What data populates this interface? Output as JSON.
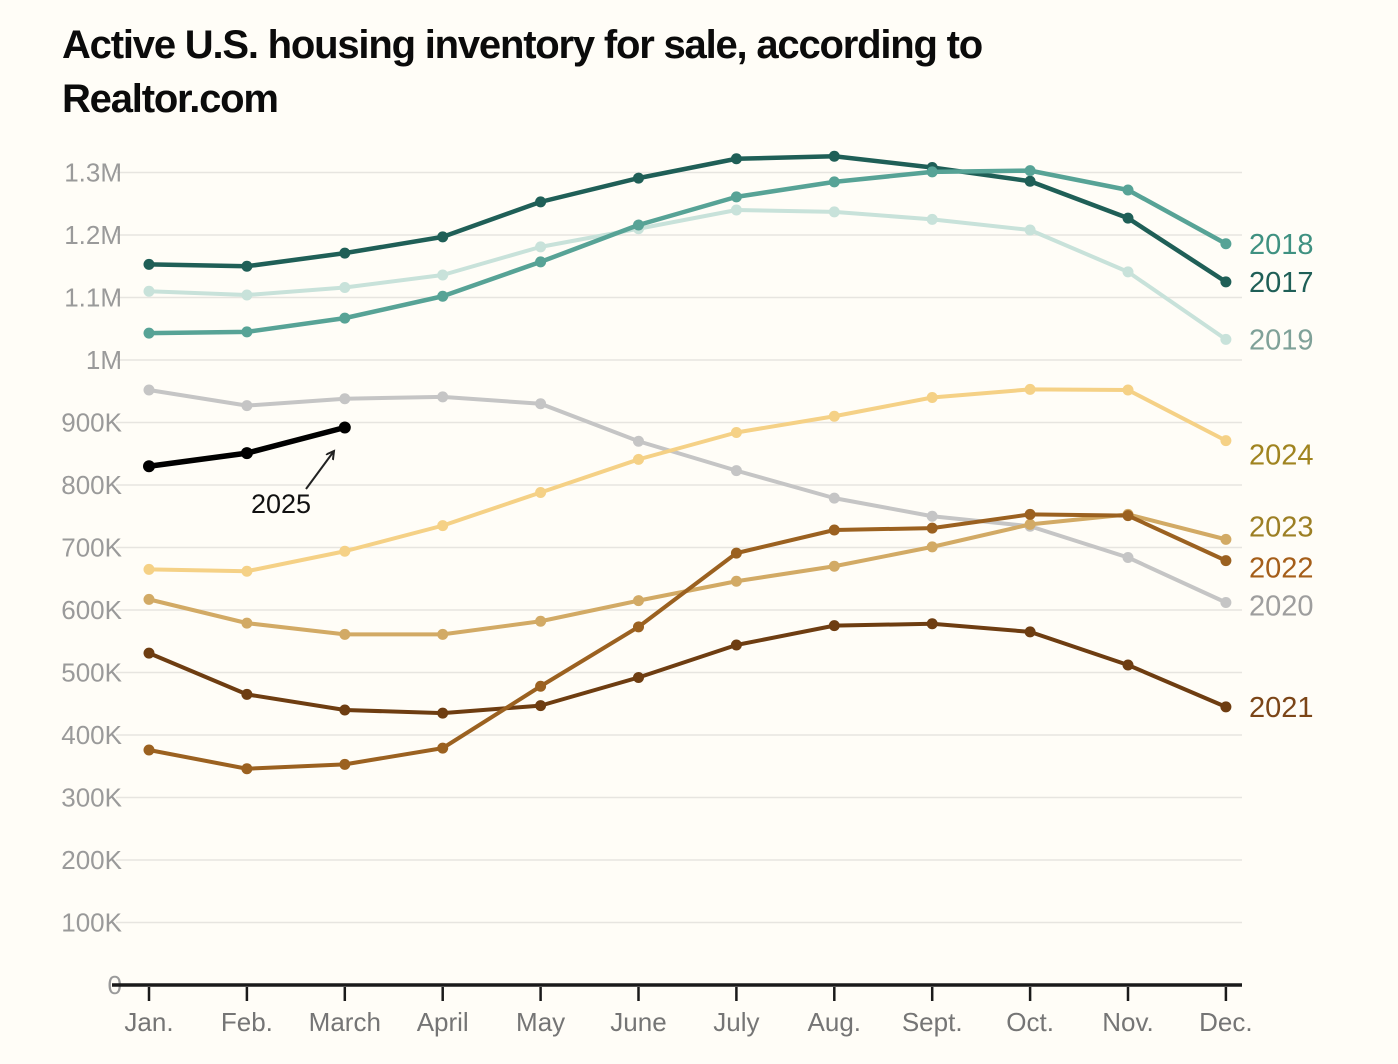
{
  "page": {
    "background": "#fffdf7"
  },
  "title": {
    "line1": "Active U.S. housing inventory for sale, according to",
    "line2": "Realtor.com"
  },
  "chart_data": {
    "type": "line",
    "x_categories": [
      "Jan.",
      "Feb.",
      "March",
      "April",
      "May",
      "June",
      "July",
      "Aug.",
      "Sept.",
      "Oct.",
      "Nov.",
      "Dec."
    ],
    "y_axis": {
      "unit": "housing units (K = thousands, M = millions)",
      "range_thousands": [
        0,
        1300
      ],
      "grid": true,
      "ticks": [
        {
          "value": 0,
          "label": "0"
        },
        {
          "value": 100,
          "label": "100K"
        },
        {
          "value": 200,
          "label": "200K"
        },
        {
          "value": 300,
          "label": "300K"
        },
        {
          "value": 400,
          "label": "400K"
        },
        {
          "value": 500,
          "label": "500K"
        },
        {
          "value": 600,
          "label": "600K"
        },
        {
          "value": 700,
          "label": "700K"
        },
        {
          "value": 800,
          "label": "800K"
        },
        {
          "value": 900,
          "label": "900K"
        },
        {
          "value": 1000,
          "label": "1M"
        },
        {
          "value": 1100,
          "label": "1.1M"
        },
        {
          "value": 1200,
          "label": "1.2M"
        },
        {
          "value": 1300,
          "label": "1.3M"
        }
      ]
    },
    "legend_position": "right-end-of-line",
    "series": [
      {
        "name": "2019",
        "color": "#c8e2da",
        "label_color": "#7fa198",
        "values_thousands": [
          1110,
          1104,
          1116,
          1136,
          1181,
          1210,
          1240,
          1237,
          1225,
          1208,
          1141,
          1033
        ]
      },
      {
        "name": "2017",
        "color": "#1f5f57",
        "label_color": "#1f5f57",
        "values_thousands": [
          1153,
          1150,
          1171,
          1197,
          1253,
          1291,
          1322,
          1326,
          1308,
          1286,
          1227,
          1125
        ]
      },
      {
        "name": "2018",
        "color": "#57a396",
        "label_color": "#3f9181",
        "values_thousands": [
          1043,
          1045,
          1067,
          1102,
          1157,
          1216,
          1261,
          1285,
          1301,
          1303,
          1272,
          1186
        ]
      },
      {
        "name": "2020",
        "color": "#c5c5c5",
        "label_color": "#9e9e9e",
        "values_thousands": [
          952,
          927,
          938,
          941,
          930,
          870,
          823,
          779,
          750,
          734,
          684,
          612
        ]
      },
      {
        "name": "2024",
        "color": "#f5d186",
        "label_color": "#a08420",
        "values_thousands": [
          665,
          662,
          694,
          735,
          788,
          841,
          884,
          910,
          940,
          953,
          952,
          871
        ]
      },
      {
        "name": "2023",
        "color": "#d2aa65",
        "label_color": "#9c7f24",
        "values_thousands": [
          617,
          579,
          561,
          561,
          582,
          615,
          646,
          670,
          701,
          737,
          753,
          713
        ]
      },
      {
        "name": "2021",
        "color": "#6e3d11",
        "label_color": "#7b4517",
        "values_thousands": [
          531,
          465,
          440,
          435,
          447,
          492,
          544,
          575,
          578,
          565,
          512,
          445
        ]
      },
      {
        "name": "2022",
        "color": "#9b6120",
        "label_color": "#a55e19",
        "values_thousands": [
          376,
          346,
          353,
          379,
          478,
          573,
          691,
          728,
          731,
          753,
          751,
          679
        ]
      },
      {
        "name": "2025",
        "color": "#000000",
        "label_color": "#000000",
        "values_thousands": [
          830,
          851,
          892
        ]
      }
    ],
    "annotation": {
      "text": "2025",
      "points_to": "March 2025 data point"
    }
  }
}
